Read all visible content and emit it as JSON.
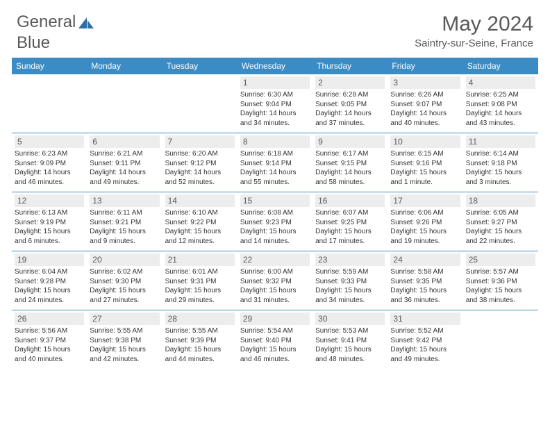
{
  "logo": {
    "text1": "General",
    "text2": "Blue"
  },
  "title": "May 2024",
  "location": "Saintry-sur-Seine, France",
  "colors": {
    "header_bg": "#3b8bc4",
    "header_text": "#ffffff",
    "daynum_bg": "#ededed",
    "border": "#3b8bc4",
    "text": "#333333",
    "muted": "#5a5a5a",
    "logo_accent": "#2f6fa8"
  },
  "day_names": [
    "Sunday",
    "Monday",
    "Tuesday",
    "Wednesday",
    "Thursday",
    "Friday",
    "Saturday"
  ],
  "weeks": [
    [
      null,
      null,
      null,
      {
        "n": "1",
        "sunrise": "6:30 AM",
        "sunset": "9:04 PM",
        "dl1": "14 hours",
        "dl2": "and 34 minutes."
      },
      {
        "n": "2",
        "sunrise": "6:28 AM",
        "sunset": "9:05 PM",
        "dl1": "14 hours",
        "dl2": "and 37 minutes."
      },
      {
        "n": "3",
        "sunrise": "6:26 AM",
        "sunset": "9:07 PM",
        "dl1": "14 hours",
        "dl2": "and 40 minutes."
      },
      {
        "n": "4",
        "sunrise": "6:25 AM",
        "sunset": "9:08 PM",
        "dl1": "14 hours",
        "dl2": "and 43 minutes."
      }
    ],
    [
      {
        "n": "5",
        "sunrise": "6:23 AM",
        "sunset": "9:09 PM",
        "dl1": "14 hours",
        "dl2": "and 46 minutes."
      },
      {
        "n": "6",
        "sunrise": "6:21 AM",
        "sunset": "9:11 PM",
        "dl1": "14 hours",
        "dl2": "and 49 minutes."
      },
      {
        "n": "7",
        "sunrise": "6:20 AM",
        "sunset": "9:12 PM",
        "dl1": "14 hours",
        "dl2": "and 52 minutes."
      },
      {
        "n": "8",
        "sunrise": "6:18 AM",
        "sunset": "9:14 PM",
        "dl1": "14 hours",
        "dl2": "and 55 minutes."
      },
      {
        "n": "9",
        "sunrise": "6:17 AM",
        "sunset": "9:15 PM",
        "dl1": "14 hours",
        "dl2": "and 58 minutes."
      },
      {
        "n": "10",
        "sunrise": "6:15 AM",
        "sunset": "9:16 PM",
        "dl1": "15 hours",
        "dl2": "and 1 minute."
      },
      {
        "n": "11",
        "sunrise": "6:14 AM",
        "sunset": "9:18 PM",
        "dl1": "15 hours",
        "dl2": "and 3 minutes."
      }
    ],
    [
      {
        "n": "12",
        "sunrise": "6:13 AM",
        "sunset": "9:19 PM",
        "dl1": "15 hours",
        "dl2": "and 6 minutes."
      },
      {
        "n": "13",
        "sunrise": "6:11 AM",
        "sunset": "9:21 PM",
        "dl1": "15 hours",
        "dl2": "and 9 minutes."
      },
      {
        "n": "14",
        "sunrise": "6:10 AM",
        "sunset": "9:22 PM",
        "dl1": "15 hours",
        "dl2": "and 12 minutes."
      },
      {
        "n": "15",
        "sunrise": "6:08 AM",
        "sunset": "9:23 PM",
        "dl1": "15 hours",
        "dl2": "and 14 minutes."
      },
      {
        "n": "16",
        "sunrise": "6:07 AM",
        "sunset": "9:25 PM",
        "dl1": "15 hours",
        "dl2": "and 17 minutes."
      },
      {
        "n": "17",
        "sunrise": "6:06 AM",
        "sunset": "9:26 PM",
        "dl1": "15 hours",
        "dl2": "and 19 minutes."
      },
      {
        "n": "18",
        "sunrise": "6:05 AM",
        "sunset": "9:27 PM",
        "dl1": "15 hours",
        "dl2": "and 22 minutes."
      }
    ],
    [
      {
        "n": "19",
        "sunrise": "6:04 AM",
        "sunset": "9:28 PM",
        "dl1": "15 hours",
        "dl2": "and 24 minutes."
      },
      {
        "n": "20",
        "sunrise": "6:02 AM",
        "sunset": "9:30 PM",
        "dl1": "15 hours",
        "dl2": "and 27 minutes."
      },
      {
        "n": "21",
        "sunrise": "6:01 AM",
        "sunset": "9:31 PM",
        "dl1": "15 hours",
        "dl2": "and 29 minutes."
      },
      {
        "n": "22",
        "sunrise": "6:00 AM",
        "sunset": "9:32 PM",
        "dl1": "15 hours",
        "dl2": "and 31 minutes."
      },
      {
        "n": "23",
        "sunrise": "5:59 AM",
        "sunset": "9:33 PM",
        "dl1": "15 hours",
        "dl2": "and 34 minutes."
      },
      {
        "n": "24",
        "sunrise": "5:58 AM",
        "sunset": "9:35 PM",
        "dl1": "15 hours",
        "dl2": "and 36 minutes."
      },
      {
        "n": "25",
        "sunrise": "5:57 AM",
        "sunset": "9:36 PM",
        "dl1": "15 hours",
        "dl2": "and 38 minutes."
      }
    ],
    [
      {
        "n": "26",
        "sunrise": "5:56 AM",
        "sunset": "9:37 PM",
        "dl1": "15 hours",
        "dl2": "and 40 minutes."
      },
      {
        "n": "27",
        "sunrise": "5:55 AM",
        "sunset": "9:38 PM",
        "dl1": "15 hours",
        "dl2": "and 42 minutes."
      },
      {
        "n": "28",
        "sunrise": "5:55 AM",
        "sunset": "9:39 PM",
        "dl1": "15 hours",
        "dl2": "and 44 minutes."
      },
      {
        "n": "29",
        "sunrise": "5:54 AM",
        "sunset": "9:40 PM",
        "dl1": "15 hours",
        "dl2": "and 46 minutes."
      },
      {
        "n": "30",
        "sunrise": "5:53 AM",
        "sunset": "9:41 PM",
        "dl1": "15 hours",
        "dl2": "and 48 minutes."
      },
      {
        "n": "31",
        "sunrise": "5:52 AM",
        "sunset": "9:42 PM",
        "dl1": "15 hours",
        "dl2": "and 49 minutes."
      },
      null
    ]
  ],
  "labels": {
    "sunrise": "Sunrise:",
    "sunset": "Sunset:",
    "daylight": "Daylight:"
  }
}
